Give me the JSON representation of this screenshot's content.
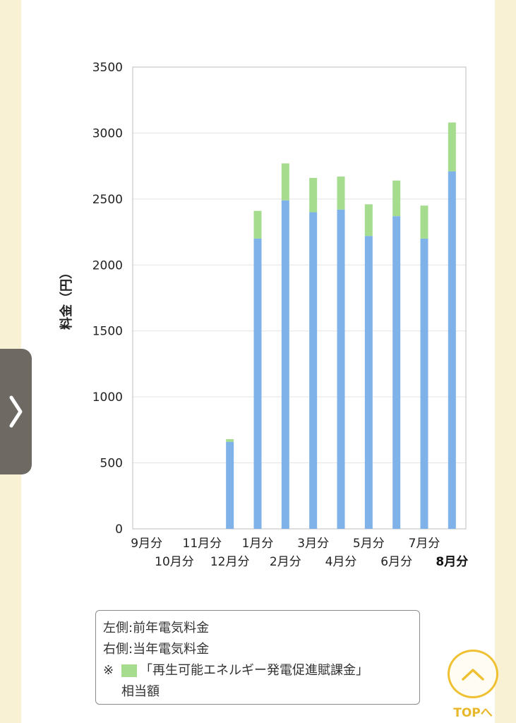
{
  "chart_data": {
    "type": "bar",
    "stacked": true,
    "ylabel": "料金（円）",
    "ylim": [
      0,
      3500
    ],
    "yticks": [
      0,
      500,
      1000,
      1500,
      2000,
      2500,
      3000,
      3500
    ],
    "grid": true,
    "categories": [
      "9月分",
      "10月分",
      "11月分",
      "12月分",
      "1月分",
      "2月分",
      "3月分",
      "4月分",
      "5月分",
      "6月分",
      "7月分",
      "8月分"
    ],
    "highlighted_category": "8月分",
    "series": [
      {
        "color": "#7fb2e8",
        "values": [
          0,
          0,
          0,
          660,
          2200,
          2490,
          2400,
          2420,
          2220,
          2370,
          2200,
          2710
        ]
      },
      {
        "color": "#a5dc8e",
        "values": [
          0,
          0,
          0,
          20,
          210,
          280,
          260,
          250,
          240,
          270,
          250,
          370
        ]
      }
    ]
  },
  "legend": {
    "left_label": "左側:前年電気料金",
    "right_label": "右側:当年電気料金",
    "note_mark": "※",
    "note_text": "「再生可能エネルギー発電促進賦課金」",
    "note_text_2": "相当額",
    "swatch_color": "#a5dc8e"
  },
  "side_tab": {
    "icon": "chevron-right-icon"
  },
  "top_button": {
    "label": "TOPへ",
    "icon": "chevron-up-icon"
  }
}
